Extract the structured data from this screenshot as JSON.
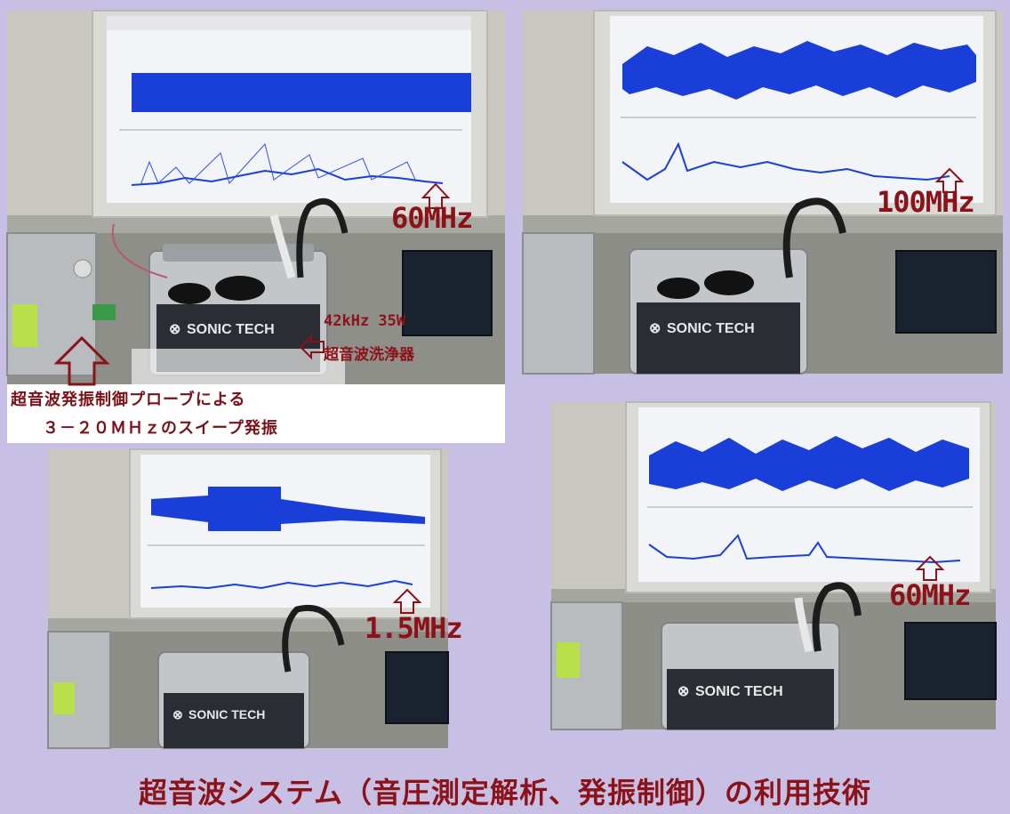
{
  "photos": {
    "top_left": {
      "frequency_label": "60MHz",
      "device_label_line1": "42kHz 35W",
      "device_label_line2": "超音波洗浄器",
      "caption_line1": "超音波発振制御プローブによる",
      "caption_line2": "３－２０ＭＨｚのスイープ発振",
      "bath_brand": "SONIC TECH"
    },
    "top_right": {
      "frequency_label": "100MHz",
      "bath_brand": "SONIC TECH"
    },
    "bottom_left": {
      "frequency_label": "1.5MHz",
      "bath_brand": "SONIC TECH"
    },
    "bottom_right": {
      "frequency_label": "60MHz",
      "bath_brand": "SONIC TECH"
    }
  },
  "footer": {
    "title": "超音波システム（音圧測定解析、発振制御）の利用技術"
  },
  "colors": {
    "background": "#c8c0e4",
    "label_red": "#8b1218",
    "waveform_blue": "#1a3fd8",
    "monitor_screen": "#f3f4f7"
  },
  "icons": [
    "arrow-up-icon",
    "arrow-left-icon"
  ]
}
